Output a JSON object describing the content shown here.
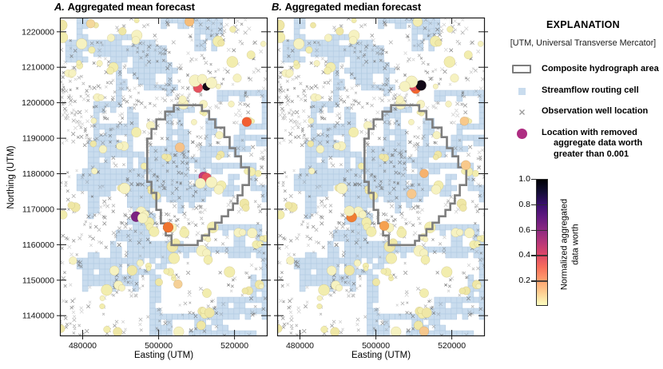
{
  "panels": [
    {
      "id": "A",
      "label": "A.",
      "title": "Aggregated mean forecast"
    },
    {
      "id": "B",
      "label": "B.",
      "title": "Aggregated median forecast"
    }
  ],
  "axes": {
    "xlabel": "Easting (UTM)",
    "ylabel": "Northing (UTM)"
  },
  "explanation": {
    "title": "EXPLANATION",
    "subtitle": "[UTM, Universal Transverse Mercator]",
    "items": [
      {
        "icon": "hydrograph-area-icon",
        "label_lines": [
          "Composite hydrograph area"
        ]
      },
      {
        "icon": "streamflow-cell-icon",
        "label_lines": [
          "Streamflow routing cell"
        ]
      },
      {
        "icon": "observation-well-icon",
        "label_lines": [
          "Observation well location"
        ]
      },
      {
        "icon": "removed-location-icon",
        "label_lines": [
          "Location with removed",
          "aggregate data worth",
          "greater than 0.001"
        ]
      }
    ]
  },
  "colorbar": {
    "label_lines": [
      "Normalized aggregated",
      "data worth"
    ],
    "tick_labels": [
      "1.0",
      "0.8",
      "0.6",
      "0.4",
      "0.2"
    ],
    "tick_values": [
      1.0,
      0.8,
      0.6,
      0.4,
      0.2
    ],
    "range": [
      0,
      1
    ],
    "colormap_name": "magma reversed (1.0 = black, 0 = pale yellow)",
    "colormap_stops": [
      "#fcfdbf",
      "#fecf92",
      "#fe9f6d",
      "#f76f5c",
      "#de4968",
      "#b73779",
      "#8c2981",
      "#641a80",
      "#3b0f70",
      "#140e36",
      "#000004"
    ]
  },
  "colors": {
    "routing_cell_fill": "#c9dcee",
    "routing_cell_stroke": "#b3cbe2",
    "observation_well": "#6b6b6b",
    "low_worth_dot": "#f6f2c1",
    "hydrograph_outline": "#7d7d7d",
    "removed_location": "#ae2d82",
    "panel_border": "#1a1a1a"
  },
  "chart_data": {
    "type": "scatter",
    "title": "Aggregated data worth maps, mean and median forecasts",
    "xlabel": "Easting (UTM)",
    "ylabel": "Northing (UTM)",
    "xlim": [
      474000,
      528700
    ],
    "ylim": [
      1134200,
      1224000
    ],
    "xticks": [
      480000,
      500000,
      520000
    ],
    "yticks": [
      1140000,
      1150000,
      1160000,
      1170000,
      1180000,
      1190000,
      1200000,
      1210000,
      1220000
    ],
    "grid": false,
    "legend_position": "right",
    "composite_hydrograph_area_utm": [
      [
        504000,
        1199300
      ],
      [
        511400,
        1199300
      ],
      [
        511400,
        1197700
      ],
      [
        513300,
        1197700
      ],
      [
        513300,
        1195300
      ],
      [
        514900,
        1195300
      ],
      [
        514900,
        1193000
      ],
      [
        517300,
        1193000
      ],
      [
        517300,
        1190300
      ],
      [
        518700,
        1190300
      ],
      [
        518700,
        1187200
      ],
      [
        520200,
        1187200
      ],
      [
        520200,
        1184900
      ],
      [
        521700,
        1184900
      ],
      [
        521700,
        1181800
      ],
      [
        523800,
        1181800
      ],
      [
        523800,
        1176800
      ],
      [
        522100,
        1176800
      ],
      [
        522100,
        1173900
      ],
      [
        520800,
        1173900
      ],
      [
        520800,
        1171600
      ],
      [
        519600,
        1171600
      ],
      [
        519600,
        1169800
      ],
      [
        518300,
        1169800
      ],
      [
        518300,
        1168000
      ],
      [
        516600,
        1168000
      ],
      [
        516600,
        1166200
      ],
      [
        514900,
        1166200
      ],
      [
        514900,
        1164400
      ],
      [
        513300,
        1164400
      ],
      [
        513300,
        1162600
      ],
      [
        511400,
        1162600
      ],
      [
        511400,
        1161100
      ],
      [
        510300,
        1161100
      ],
      [
        510300,
        1159900
      ],
      [
        503400,
        1159900
      ],
      [
        503400,
        1162600
      ],
      [
        501900,
        1162600
      ],
      [
        501900,
        1166000
      ],
      [
        500600,
        1166000
      ],
      [
        500600,
        1169800
      ],
      [
        499400,
        1169800
      ],
      [
        499400,
        1174600
      ],
      [
        498100,
        1174600
      ],
      [
        498100,
        1177700
      ],
      [
        497000,
        1177700
      ],
      [
        497000,
        1189900
      ],
      [
        498100,
        1189900
      ],
      [
        498100,
        1192600
      ],
      [
        499400,
        1192600
      ],
      [
        499400,
        1195300
      ],
      [
        501700,
        1195300
      ],
      [
        501700,
        1197500
      ],
      [
        504000,
        1197500
      ]
    ],
    "panels": [
      {
        "name": "Aggregated mean forecast",
        "show_y_tick_labels": true,
        "highlight_points": [
          {
            "x": 482100,
            "y": 1222300,
            "r": 5.5,
            "v": 0.1,
            "color": "#f4d89b"
          },
          {
            "x": 508100,
            "y": 1222900,
            "r": 6,
            "v": 0.2,
            "color": "#f6bd7a"
          },
          {
            "x": 510400,
            "y": 1204200,
            "r": 6,
            "v": 0.45,
            "color": "#e4525f"
          },
          {
            "x": 512600,
            "y": 1204500,
            "r": 5,
            "v": 1.0,
            "color": "#120817"
          },
          {
            "x": 509600,
            "y": 1206200,
            "r": 7.5,
            "v": 0.02,
            "color": "#f6f2c1",
            "cover": true
          },
          {
            "x": 513900,
            "y": 1205600,
            "r": 7,
            "v": 0.02,
            "color": "#f6f2c1",
            "cover": true
          },
          {
            "x": 511500,
            "y": 1206700,
            "r": 6,
            "v": 0.02,
            "color": "#f6f2c1",
            "cover": true
          },
          {
            "x": 523200,
            "y": 1194600,
            "r": 6,
            "v": 0.35,
            "color": "#f25f33"
          },
          {
            "x": 505600,
            "y": 1187400,
            "r": 6,
            "v": 0.15,
            "color": "#f6c289"
          },
          {
            "x": 511800,
            "y": 1179200,
            "r": 6,
            "v": 0.55,
            "color": "#c23b7a"
          },
          {
            "x": 512600,
            "y": 1178900,
            "r": 6,
            "v": 0.45,
            "color": "#e4525f"
          },
          {
            "x": 513900,
            "y": 1177600,
            "r": 7,
            "v": 0.02,
            "color": "#f6f2c1",
            "cover": true
          },
          {
            "x": 511000,
            "y": 1177300,
            "r": 6.5,
            "v": 0.02,
            "color": "#f6f2c1",
            "cover": true
          },
          {
            "x": 494100,
            "y": 1167900,
            "r": 6.5,
            "v": 0.65,
            "color": "#7b2382"
          },
          {
            "x": 495800,
            "y": 1167500,
            "r": 6.5,
            "v": 0.02,
            "color": "#f6f2c1",
            "cover": true
          },
          {
            "x": 502500,
            "y": 1164900,
            "r": 6.5,
            "v": 0.3,
            "color": "#ef7430"
          },
          {
            "x": 505100,
            "y": 1148900,
            "r": 5.5,
            "v": 0.1,
            "color": "#f5d096"
          }
        ]
      },
      {
        "name": "Aggregated median forecast",
        "show_y_tick_labels": false,
        "highlight_points": [
          {
            "x": 511000,
            "y": 1222800,
            "r": 6,
            "v": 0.05,
            "color": "#f3edb2"
          },
          {
            "x": 510500,
            "y": 1203900,
            "r": 6,
            "v": 0.35,
            "color": "#f2652f"
          },
          {
            "x": 509900,
            "y": 1204600,
            "r": 5.5,
            "v": 0.45,
            "color": "#e4525f"
          },
          {
            "x": 511900,
            "y": 1204900,
            "r": 6.5,
            "v": 1.0,
            "color": "#120817"
          },
          {
            "x": 509400,
            "y": 1205900,
            "r": 7.5,
            "v": 0.02,
            "color": "#f6f2c1",
            "cover": true
          },
          {
            "x": 507600,
            "y": 1204600,
            "r": 6.5,
            "v": 0.02,
            "color": "#f6f2c1",
            "cover": true
          },
          {
            "x": 523300,
            "y": 1194800,
            "r": 5.5,
            "v": 0.15,
            "color": "#f8c98b"
          },
          {
            "x": 523700,
            "y": 1182400,
            "r": 6,
            "v": 0.15,
            "color": "#f8c98b"
          },
          {
            "x": 512700,
            "y": 1180100,
            "r": 5.5,
            "v": 0.2,
            "color": "#f6b26e"
          },
          {
            "x": 509400,
            "y": 1174300,
            "r": 6,
            "v": 0.15,
            "color": "#f6c88e"
          },
          {
            "x": 493600,
            "y": 1167800,
            "r": 6.5,
            "v": 0.3,
            "color": "#ef7d33"
          },
          {
            "x": 493000,
            "y": 1169500,
            "r": 6.5,
            "v": 0.02,
            "color": "#f3efbb",
            "cover": true
          },
          {
            "x": 502200,
            "y": 1165300,
            "r": 6,
            "v": 0.25,
            "color": "#f5a150"
          },
          {
            "x": 512700,
            "y": 1135600,
            "r": 6,
            "v": 0.15,
            "color": "#f6c88e"
          }
        ]
      }
    ],
    "background": {
      "description": "identical model-grid background in both panels: light-blue streamflow routing cells, gray x observation wells, pale-yellow low data-worth circles",
      "grid_cols": 37,
      "grid_rows": 57,
      "cell_seed": 11,
      "well_seed": 23,
      "dot_seed": 7,
      "n_dots": 92
    }
  }
}
